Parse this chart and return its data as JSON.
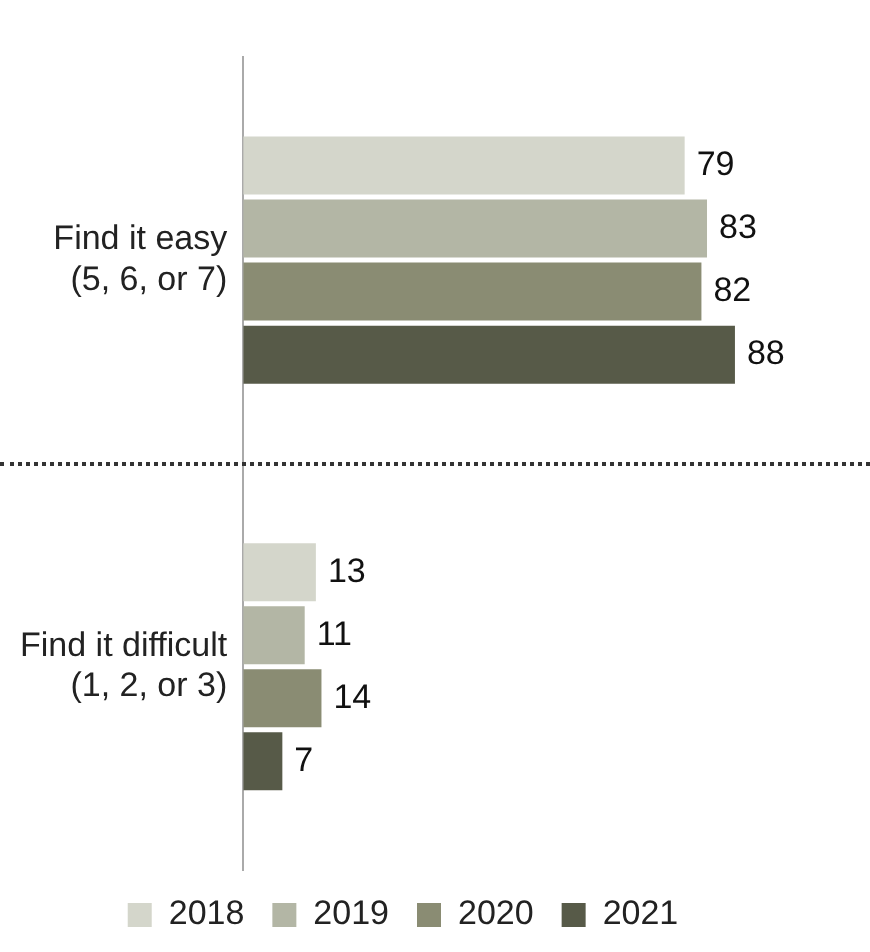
{
  "chart_data": {
    "type": "bar",
    "orientation": "horizontal",
    "categories": [
      "Find it easy\n(5, 6, or 7)",
      "Find it difficult\n(1, 2, or 3)"
    ],
    "series": [
      {
        "name": "2018",
        "color": "#d4d6cb",
        "values": [
          79,
          13
        ]
      },
      {
        "name": "2019",
        "color": "#b3b6a5",
        "values": [
          83,
          11
        ]
      },
      {
        "name": "2020",
        "color": "#8a8c73",
        "values": [
          82,
          14
        ]
      },
      {
        "name": "2021",
        "color": "#575a48",
        "values": [
          88,
          7
        ]
      }
    ],
    "data_labels": true,
    "legend": "bottom",
    "tick_labels": "y"
  }
}
